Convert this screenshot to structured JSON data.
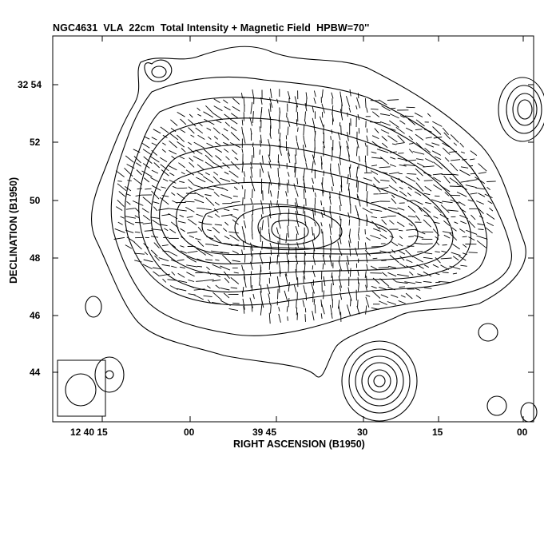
{
  "chart_data": {
    "type": "contour",
    "title": "NGC4631  VLA  22cm  Total Intensity + Magnetic Field  HPBW=70''",
    "xlabel": "RIGHT ASCENSION (B1950)",
    "ylabel": "DECLINATION (B1950)",
    "x_ticks": [
      "12 40 15",
      "00",
      "39 45",
      "30",
      "15",
      "00"
    ],
    "y_ticks": [
      "32 54",
      "52",
      "50",
      "48",
      "46",
      "44"
    ],
    "beam_label": "HPBW=70''",
    "features": [
      "galaxy total intensity contours",
      "magnetic field vectors",
      "compact background sources",
      "beam ellipse"
    ]
  }
}
